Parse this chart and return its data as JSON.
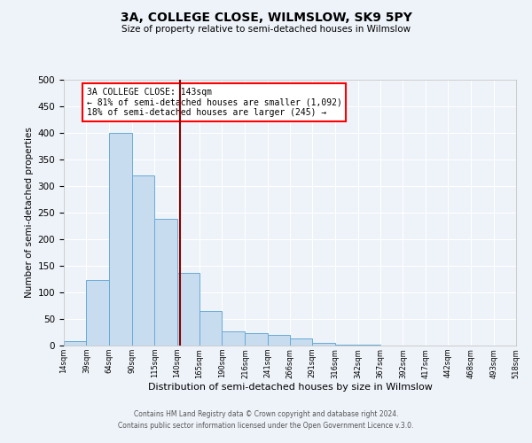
{
  "title": "3A, COLLEGE CLOSE, WILMSLOW, SK9 5PY",
  "subtitle": "Size of property relative to semi-detached houses in Wilmslow",
  "xlabel": "Distribution of semi-detached houses by size in Wilmslow",
  "ylabel": "Number of semi-detached properties",
  "bar_color": "#c8dcf0",
  "bar_edge_color": "#6aaad4",
  "background_color": "#eef3fa",
  "grid_color": "#ffffff",
  "vline_x": 143,
  "vline_color": "#8b0000",
  "bin_edges": [
    14,
    39,
    64,
    90,
    115,
    140,
    165,
    190,
    216,
    241,
    266,
    291,
    316,
    342,
    367,
    392,
    417,
    442,
    468,
    493,
    518
  ],
  "bar_values": [
    8,
    124,
    400,
    320,
    238,
    136,
    65,
    27,
    23,
    20,
    13,
    5,
    2,
    1,
    0,
    0,
    0,
    0,
    0,
    0
  ],
  "tick_labels": [
    "14sqm",
    "39sqm",
    "64sqm",
    "90sqm",
    "115sqm",
    "140sqm",
    "165sqm",
    "190sqm",
    "216sqm",
    "241sqm",
    "266sqm",
    "291sqm",
    "316sqm",
    "342sqm",
    "367sqm",
    "392sqm",
    "417sqm",
    "442sqm",
    "468sqm",
    "493sqm",
    "518sqm"
  ],
  "annotation_line1": "3A COLLEGE CLOSE: 143sqm",
  "annotation_line2": "← 81% of semi-detached houses are smaller (1,092)",
  "annotation_line3": "18% of semi-detached houses are larger (245) →",
  "ylim": [
    0,
    500
  ],
  "yticks": [
    0,
    50,
    100,
    150,
    200,
    250,
    300,
    350,
    400,
    450,
    500
  ],
  "footer1": "Contains HM Land Registry data © Crown copyright and database right 2024.",
  "footer2": "Contains public sector information licensed under the Open Government Licence v.3.0."
}
